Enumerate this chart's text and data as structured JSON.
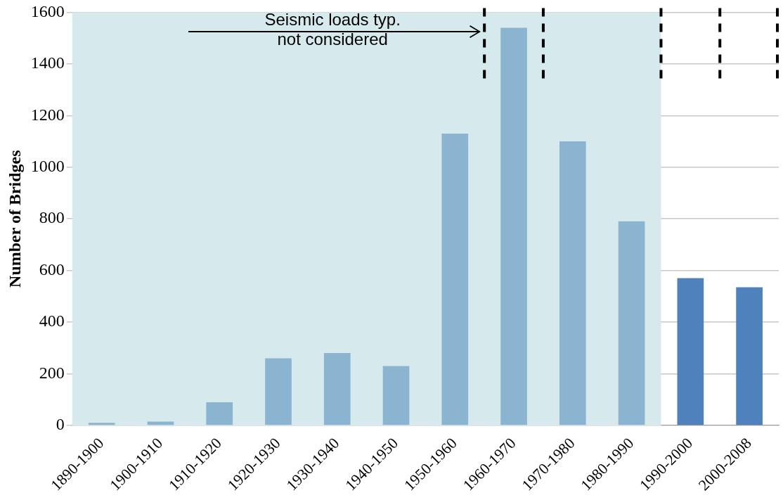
{
  "chart_data": {
    "type": "bar",
    "ylabel": "Number of Bridges",
    "categories": [
      "1890-1900",
      "1900-1910",
      "1910-1920",
      "1920-1930",
      "1930-1940",
      "1940-1950",
      "1950-1960",
      "1960-1970",
      "1970-1980",
      "1980-1990",
      "1990-2000",
      "2000-2008"
    ],
    "values": [
      10,
      15,
      90,
      260,
      280,
      230,
      1130,
      1540,
      1100,
      790,
      570,
      535
    ],
    "colors": [
      "#8ab4d0",
      "#8ab4d0",
      "#8ab4d0",
      "#8ab4d0",
      "#8ab4d0",
      "#8ab4d0",
      "#8ab4d0",
      "#8ab4d0",
      "#8ab4d0",
      "#8ab4d0",
      "#4f81bd",
      "#4f81bd"
    ],
    "ylim": [
      0,
      1600
    ],
    "yticks": [
      0,
      200,
      400,
      600,
      800,
      1000,
      1200,
      1400,
      1600
    ],
    "grid": "y",
    "legend": false,
    "bands": [
      {
        "axis": "x",
        "from": "1890-1900",
        "to": "1980-1990",
        "color": "#d6eaee"
      }
    ],
    "ref_lines": [
      {
        "axis": "x",
        "value": "1950-1960",
        "color": "#000000",
        "line_style": "dashed"
      },
      {
        "axis": "x",
        "value": "1960-1970",
        "color": "#000000",
        "line_style": "dashed"
      },
      {
        "axis": "x",
        "value": "1980-1990",
        "color": "#000000",
        "line_style": "dashed"
      },
      {
        "axis": "x",
        "value": "1990-2000",
        "color": "#000000",
        "line_style": "dashed"
      },
      {
        "axis": "x",
        "value": "2000-2008",
        "color": "#000000",
        "line_style": "dashed"
      }
    ],
    "annotations": [
      "Seismic loads typ. not considered"
    ]
  }
}
